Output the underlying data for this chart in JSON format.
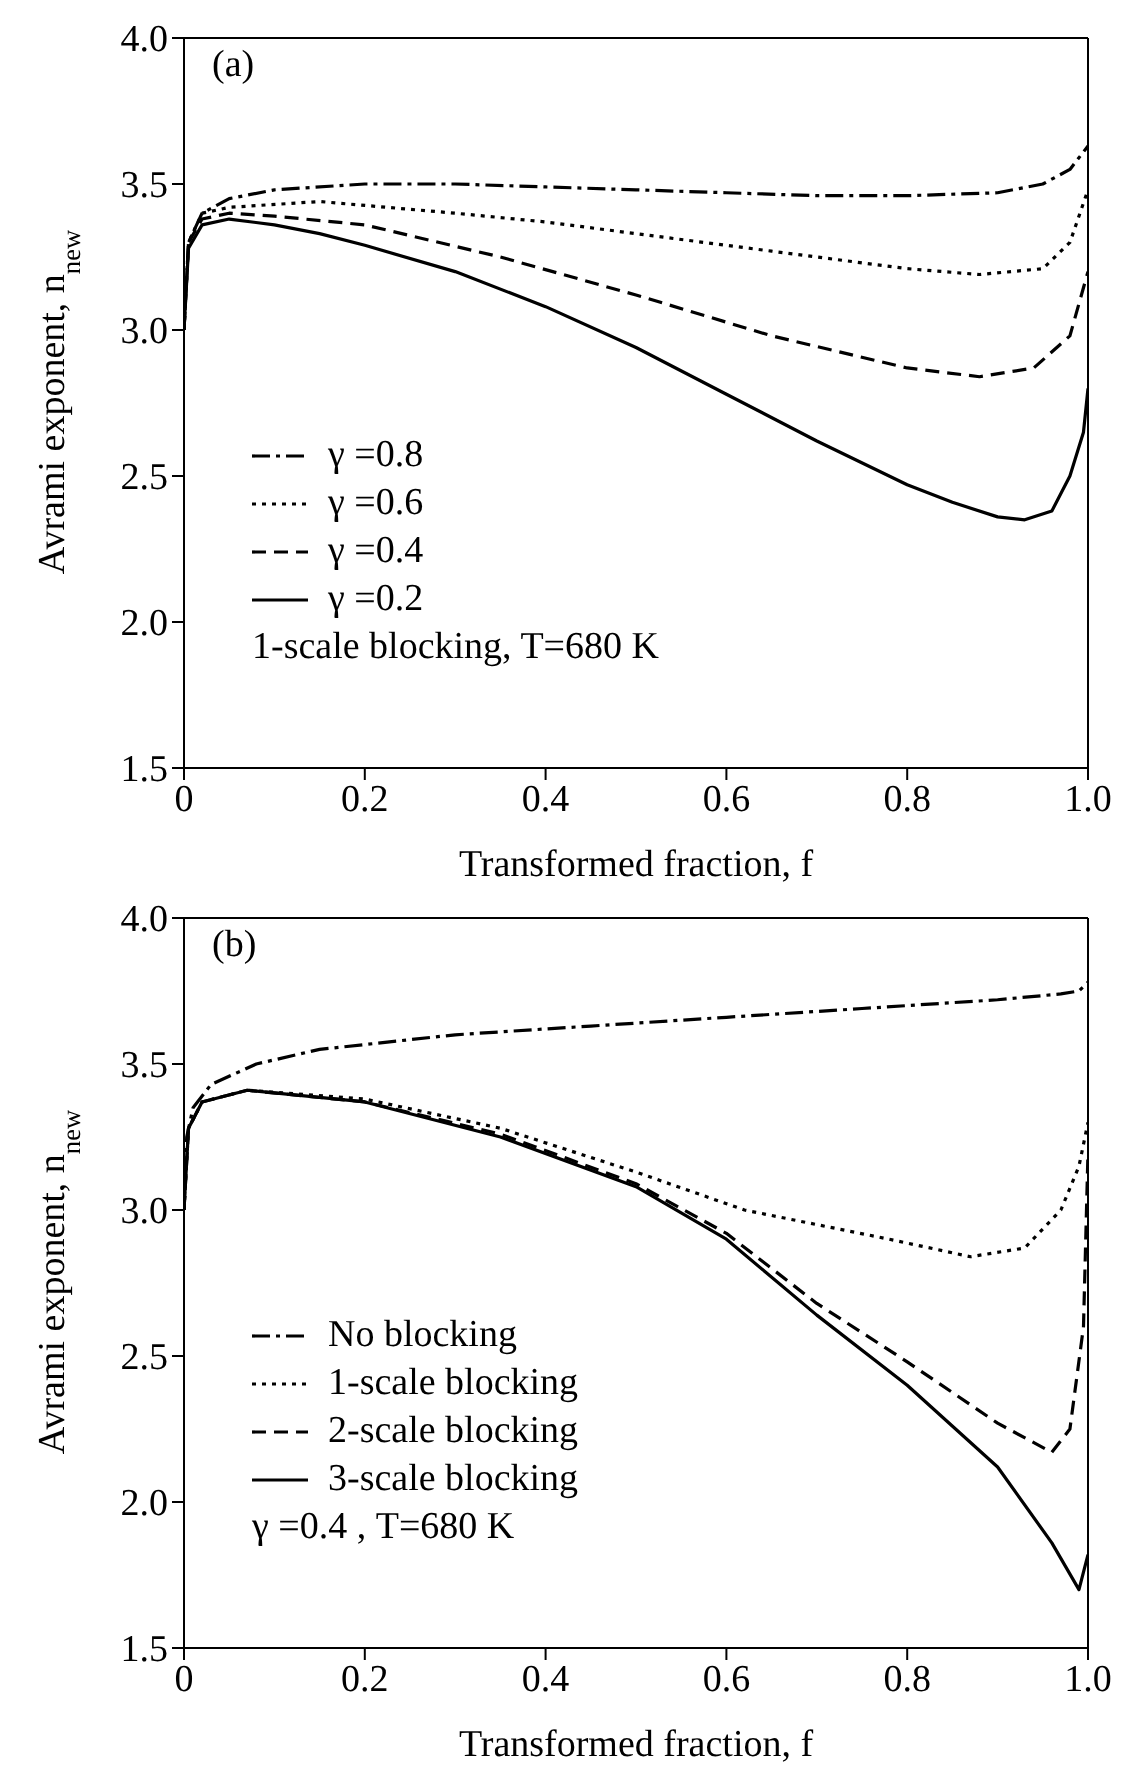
{
  "chart_data": [
    {
      "type": "line",
      "xlabel": "Transformed fraction, f",
      "ylabel": "Avrami exponent, n$_{new}$",
      "annotations": [
        "(a)",
        "1-scale blocking, T=680 K"
      ],
      "xlim": [
        0,
        1
      ],
      "xticks": [
        0,
        0.2,
        0.4,
        0.6,
        0.8,
        {
          "value": 1,
          "label": "1.0"
        }
      ],
      "ylim": [
        1.5,
        4
      ],
      "yticks": [
        1.5,
        {
          "value": 2,
          "label": "2.0"
        },
        2.5,
        {
          "value": 3,
          "label": "3.0"
        },
        3.5,
        {
          "value": 4,
          "label": "4.0"
        }
      ],
      "grid": false,
      "legend": "bottom left",
      "marker": "none",
      "series": [
        {
          "name": "γ =0.8",
          "color": "#000000",
          "line_style": "dashdot",
          "x": [
            0,
            0.005,
            0.02,
            0.05,
            0.1,
            0.2,
            0.3,
            0.4,
            0.5,
            0.6,
            0.7,
            0.75,
            0.8,
            0.9,
            0.95,
            0.98,
            1
          ],
          "values": [
            3.0,
            3.3,
            3.4,
            3.45,
            3.48,
            3.5,
            3.5,
            3.49,
            3.48,
            3.47,
            3.46,
            3.46,
            3.46,
            3.47,
            3.5,
            3.55,
            3.63
          ]
        },
        {
          "name": "γ =0.6",
          "color": "#000000",
          "line_style": "dotted",
          "x": [
            0,
            0.005,
            0.02,
            0.05,
            0.15,
            0.3,
            0.4,
            0.5,
            0.65,
            0.8,
            0.88,
            0.95,
            0.98,
            1
          ],
          "values": [
            3.0,
            3.3,
            3.4,
            3.42,
            3.44,
            3.4,
            3.37,
            3.33,
            3.27,
            3.21,
            3.19,
            3.21,
            3.3,
            3.48
          ]
        },
        {
          "name": "γ =0.4",
          "color": "#000000",
          "line_style": "dashed",
          "x": [
            0,
            0.005,
            0.02,
            0.05,
            0.1,
            0.2,
            0.35,
            0.5,
            0.65,
            0.8,
            0.88,
            0.94,
            0.98,
            1
          ],
          "values": [
            3.0,
            3.3,
            3.38,
            3.4,
            3.39,
            3.36,
            3.25,
            3.12,
            2.98,
            2.87,
            2.84,
            2.87,
            2.98,
            3.2
          ]
        },
        {
          "name": "γ =0.2",
          "color": "#000000",
          "line_style": "solid",
          "x": [
            0,
            0.005,
            0.02,
            0.05,
            0.1,
            0.15,
            0.2,
            0.3,
            0.4,
            0.5,
            0.6,
            0.7,
            0.8,
            0.85,
            0.9,
            0.93,
            0.96,
            0.98,
            0.995,
            1
          ],
          "values": [
            3.0,
            3.28,
            3.36,
            3.38,
            3.36,
            3.33,
            3.29,
            3.2,
            3.08,
            2.94,
            2.78,
            2.62,
            2.47,
            2.41,
            2.36,
            2.35,
            2.38,
            2.5,
            2.65,
            2.8
          ]
        }
      ]
    },
    {
      "type": "line",
      "xlabel": "Transformed fraction, f",
      "ylabel": "Avrami exponent, n$_{new}$",
      "annotations": [
        "(b)",
        "γ =0.4 , T=680 K"
      ],
      "xlim": [
        0,
        1
      ],
      "xticks": [
        0,
        0.2,
        0.4,
        0.6,
        0.8,
        {
          "value": 1,
          "label": "1.0"
        }
      ],
      "ylim": [
        1.5,
        4
      ],
      "yticks": [
        1.5,
        {
          "value": 2,
          "label": "2.0"
        },
        2.5,
        {
          "value": 3,
          "label": "3.0"
        },
        3.5,
        {
          "value": 4,
          "label": "4.0"
        }
      ],
      "grid": false,
      "legend": "bottom left",
      "marker": "none",
      "series": [
        {
          "name": "No blocking",
          "color": "#000000",
          "line_style": "dashdot",
          "x": [
            0,
            0.003,
            0.01,
            0.03,
            0.08,
            0.15,
            0.3,
            0.45,
            0.6,
            0.75,
            0.9,
            0.97,
            0.99,
            1
          ],
          "values": [
            3.0,
            3.25,
            3.35,
            3.43,
            3.5,
            3.55,
            3.6,
            3.63,
            3.66,
            3.69,
            3.72,
            3.74,
            3.75,
            3.78
          ]
        },
        {
          "name": "1-scale blocking",
          "color": "#000000",
          "line_style": "dotted",
          "x": [
            0,
            0.005,
            0.02,
            0.07,
            0.2,
            0.35,
            0.5,
            0.62,
            0.78,
            0.87,
            0.93,
            0.97,
            0.99,
            1
          ],
          "values": [
            3.0,
            3.28,
            3.37,
            3.41,
            3.38,
            3.28,
            3.13,
            3.0,
            2.9,
            2.84,
            2.87,
            3.0,
            3.15,
            3.3
          ]
        },
        {
          "name": "2-scale blocking",
          "color": "#000000",
          "line_style": "dashed",
          "x": [
            0,
            0.005,
            0.02,
            0.07,
            0.2,
            0.35,
            0.5,
            0.6,
            0.7,
            0.8,
            0.9,
            0.96,
            0.98,
            0.995,
            1
          ],
          "values": [
            3.0,
            3.28,
            3.37,
            3.41,
            3.37,
            3.26,
            3.09,
            2.92,
            2.68,
            2.48,
            2.27,
            2.17,
            2.25,
            2.6,
            3.2
          ]
        },
        {
          "name": "3-scale blocking",
          "color": "#000000",
          "line_style": "solid",
          "x": [
            0,
            0.005,
            0.02,
            0.07,
            0.2,
            0.35,
            0.5,
            0.6,
            0.7,
            0.8,
            0.9,
            0.96,
            0.99,
            1
          ],
          "values": [
            3.0,
            3.28,
            3.37,
            3.41,
            3.37,
            3.25,
            3.08,
            2.9,
            2.64,
            2.4,
            2.12,
            1.86,
            1.7,
            1.82
          ]
        }
      ]
    }
  ]
}
